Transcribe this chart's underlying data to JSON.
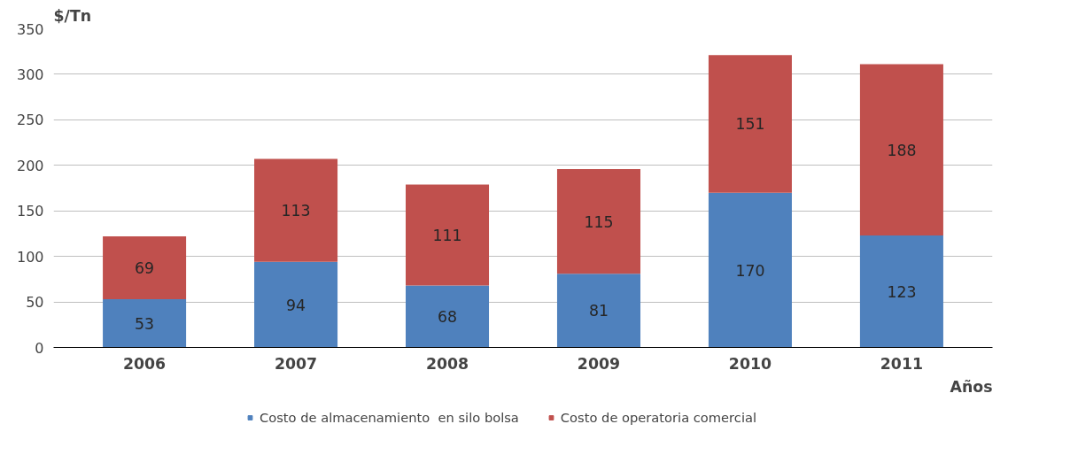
{
  "chart_data": {
    "type": "bar",
    "stacked": true,
    "ylabel": "$/Tn",
    "xlabel": "Años",
    "categories": [
      "2006",
      "2007",
      "2008",
      "2009",
      "2010",
      "2011"
    ],
    "series": [
      {
        "name": "Costo de almacenamiento  en silo bolsa",
        "color": "#4f81bd",
        "values": [
          53,
          94,
          68,
          81,
          170,
          123
        ]
      },
      {
        "name": "Costo de operatoria comercial",
        "color": "#c0504d",
        "values": [
          69,
          113,
          111,
          115,
          151,
          188
        ]
      }
    ],
    "ylim": [
      0,
      350
    ],
    "yticks": [
      0,
      50,
      100,
      150,
      200,
      250,
      300,
      350
    ],
    "grid": "y",
    "legend": "bottom",
    "data_labels": true
  }
}
